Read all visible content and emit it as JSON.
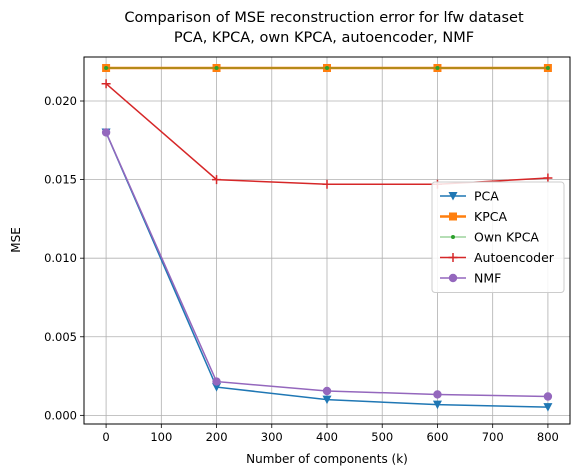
{
  "chart_data": {
    "type": "line",
    "title": "Comparison of MSE reconstruction error for lfw dataset",
    "subtitle": "PCA, KPCA, own KPCA, autoencoder, NMF",
    "xlabel": "Number of components (k)",
    "ylabel": "MSE",
    "xlim": [
      -40,
      840
    ],
    "ylim": [
      -0.00055,
      0.0228
    ],
    "x": [
      0,
      200,
      400,
      600,
      800
    ],
    "xticks": [
      0,
      100,
      200,
      300,
      400,
      500,
      600,
      700,
      800
    ],
    "xtick_labels": [
      "0",
      "100",
      "200",
      "300",
      "400",
      "500",
      "600",
      "700",
      "800"
    ],
    "yticks": [
      0.0,
      0.005,
      0.01,
      0.015,
      0.02
    ],
    "ytick_labels": [
      "0.000",
      "0.005",
      "0.010",
      "0.015",
      "0.020"
    ],
    "grid": true,
    "legend_position": "center-right",
    "series": [
      {
        "name": "PCA",
        "color": "#1f77b4",
        "marker": "triangle-down",
        "values": [
          0.018,
          0.0018,
          0.001,
          0.00068,
          0.00052
        ]
      },
      {
        "name": "KPCA",
        "color": "#ff7f0e",
        "marker": "square",
        "values": [
          0.0221,
          0.0221,
          0.0221,
          0.0221,
          0.0221
        ]
      },
      {
        "name": "Own KPCA",
        "color": "#2ca02c",
        "marker": "point",
        "values": [
          0.0221,
          0.0221,
          0.0221,
          0.0221,
          0.0221
        ]
      },
      {
        "name": "Autoencoder",
        "color": "#d62728",
        "marker": "plus",
        "values": [
          0.0211,
          0.015,
          0.0147,
          0.0147,
          0.0151
        ]
      },
      {
        "name": "NMF",
        "color": "#9467bd",
        "marker": "circle",
        "values": [
          0.018,
          0.00215,
          0.00155,
          0.00133,
          0.0012
        ]
      }
    ]
  }
}
